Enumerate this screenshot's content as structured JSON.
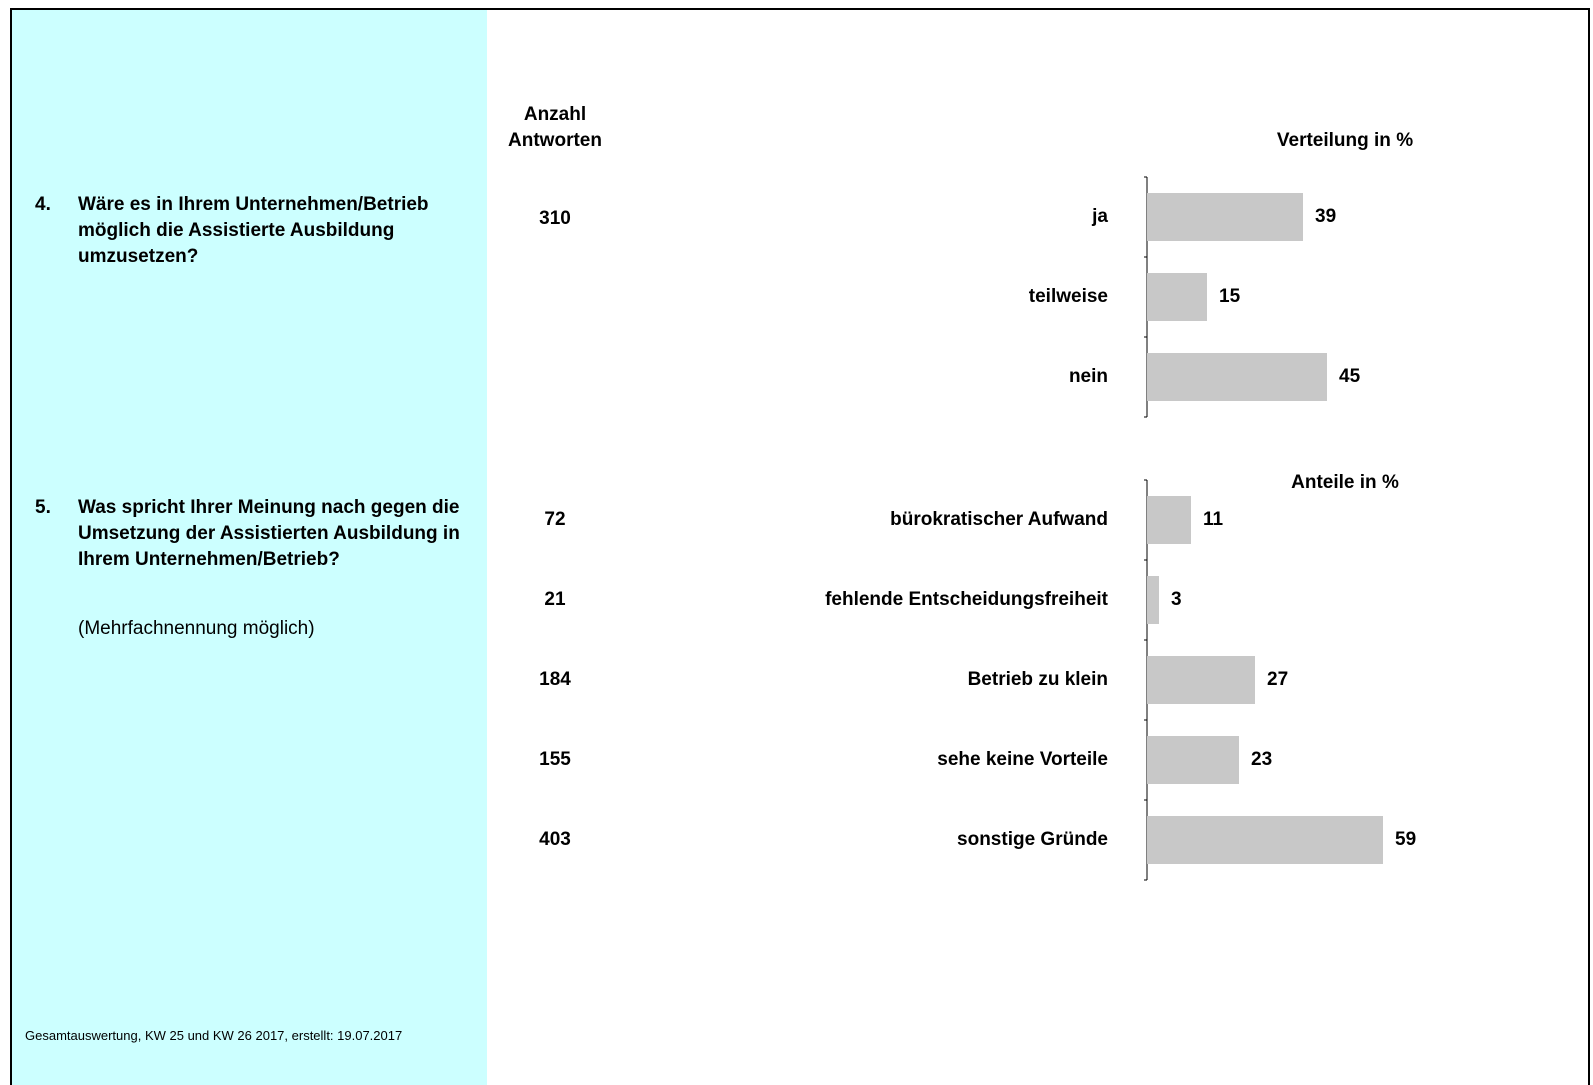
{
  "header": {
    "count_label": "Anzahl Antworten"
  },
  "questions": [
    {
      "number": "4.",
      "text": "Wäre es in Ihrem Unternehmen/Betrieb möglich die Assistierte Ausbildung umzusetzen?",
      "count": 310
    },
    {
      "number": "5.",
      "text": "Was spricht Ihrer Meinung nach gegen die Umsetzung der Assistierten Ausbildung in Ihrem Unternehmen/Betrieb?",
      "note": "(Mehrfachnennung möglich)"
    }
  ],
  "chart_data": [
    {
      "type": "bar",
      "title": "Verteilung in %",
      "categories": [
        "ja",
        "teilweise",
        "nein"
      ],
      "values": [
        39,
        15,
        45
      ],
      "color": "#c8c8c8"
    },
    {
      "type": "bar",
      "title": "Anteile in %",
      "categories": [
        "bürokratischer Aufwand",
        "fehlende Entscheidungsfreiheit",
        "Betrieb zu klein",
        "sehe keine Vorteile",
        "sonstige Gründe"
      ],
      "values": [
        11,
        3,
        27,
        23,
        59
      ],
      "counts": [
        72,
        21,
        184,
        155,
        403
      ],
      "color": "#c8c8c8"
    }
  ],
  "footer": "Gesamtauswertung, KW 25 und KW 26 2017, erstellt: 19.07.2017"
}
